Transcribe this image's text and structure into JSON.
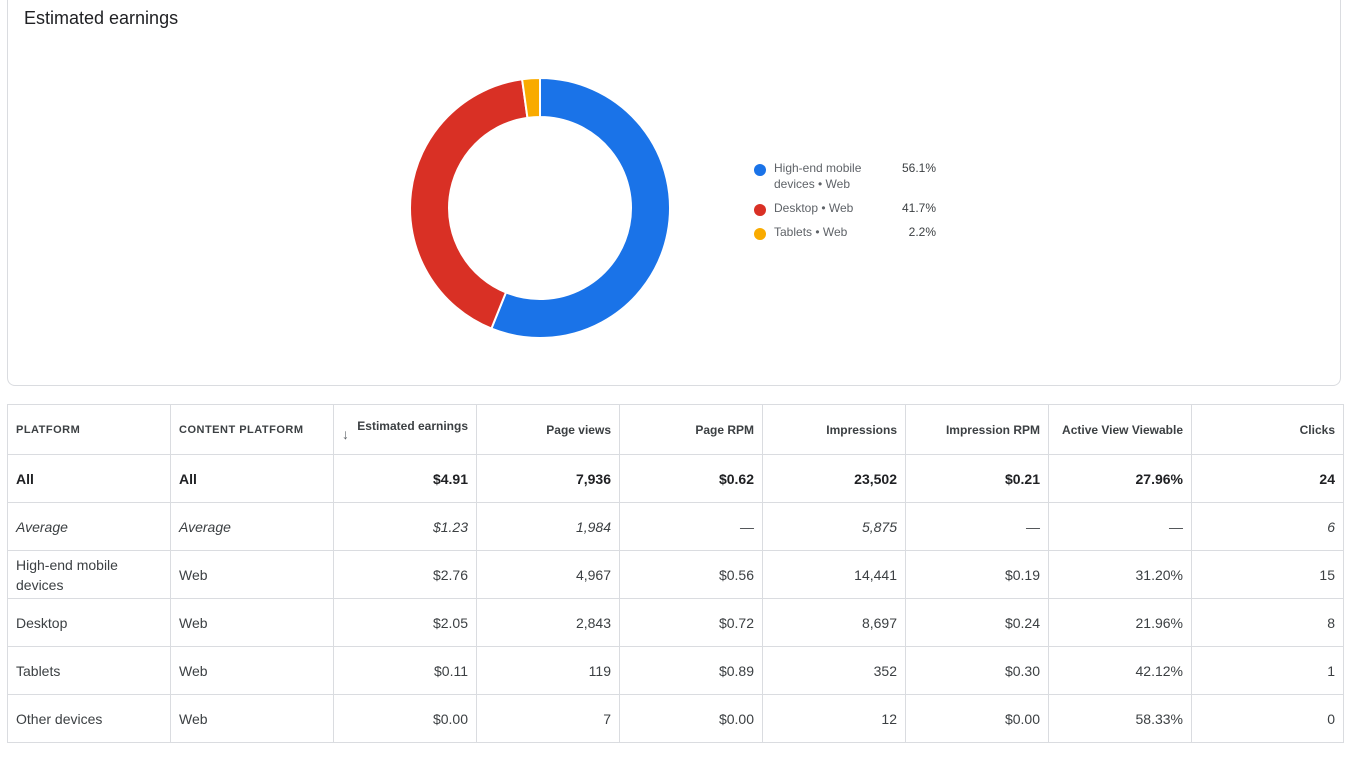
{
  "chart_data": {
    "type": "pie",
    "title": "Estimated earnings",
    "donut": true,
    "categories": [
      "High-end mobile devices • Web",
      "Desktop • Web",
      "Tablets • Web"
    ],
    "values": [
      56.1,
      41.7,
      2.2
    ],
    "value_labels": [
      "56.1%",
      "41.7%",
      "2.2%"
    ],
    "colors": [
      "#1a73e8",
      "#d93025",
      "#f9ab00"
    ]
  },
  "table": {
    "columns": [
      "PLATFORM",
      "CONTENT PLATFORM",
      "Estimated earnings",
      "Page views",
      "Page RPM",
      "Impressions",
      "Impression RPM",
      "Active View Viewable",
      "Clicks"
    ],
    "rows": [
      [
        "All",
        "All",
        "$4.91",
        "7,936",
        "$0.62",
        "23,502",
        "$0.21",
        "27.96%",
        "24"
      ],
      [
        "Average",
        "Average",
        "$1.23",
        "1,984",
        "—",
        "5,875",
        "—",
        "—",
        "6"
      ],
      [
        "High-end mobile devices",
        "Web",
        "$2.76",
        "4,967",
        "$0.56",
        "14,441",
        "$0.19",
        "31.20%",
        "15"
      ],
      [
        "Desktop",
        "Web",
        "$2.05",
        "2,843",
        "$0.72",
        "8,697",
        "$0.24",
        "21.96%",
        "8"
      ],
      [
        "Tablets",
        "Web",
        "$0.11",
        "119",
        "$0.89",
        "352",
        "$0.30",
        "42.12%",
        "1"
      ],
      [
        "Other devices",
        "Web",
        "$0.00",
        "7",
        "$0.00",
        "12",
        "$0.00",
        "58.33%",
        "0"
      ]
    ]
  }
}
